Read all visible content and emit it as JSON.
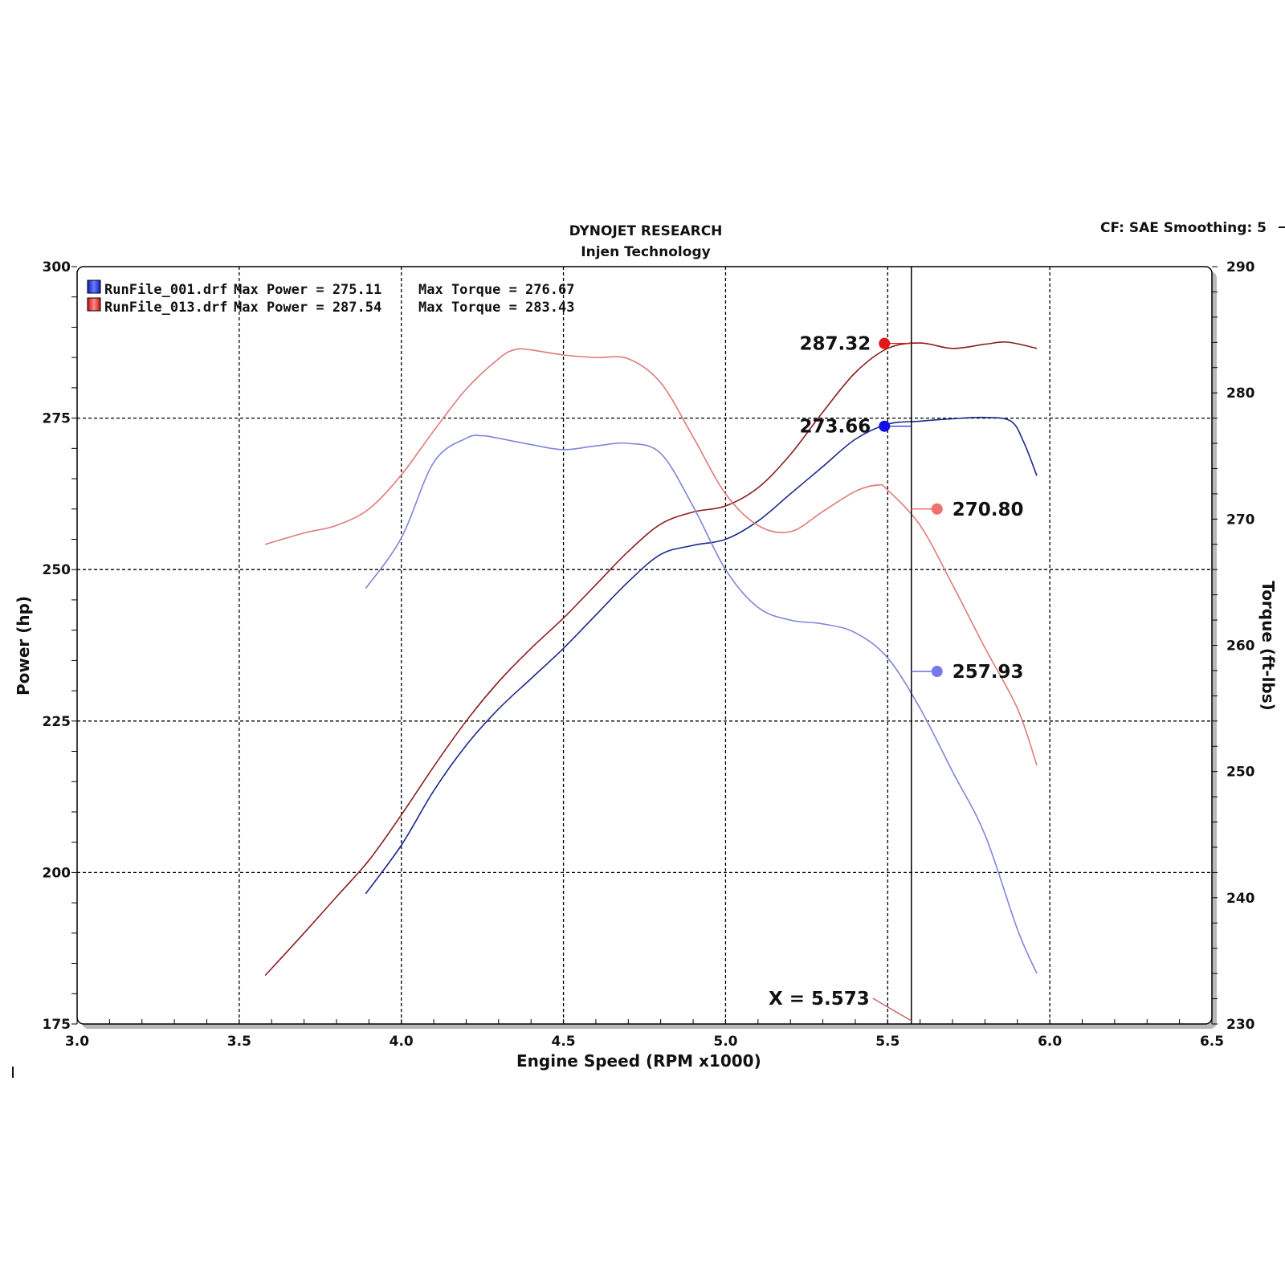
{
  "header": {
    "title": "DYNOJET RESEARCH",
    "subtitle": "Injen Technology",
    "settings": "CF: SAE  Smoothing: 5"
  },
  "cursor": {
    "label": "X = 5.573",
    "x": 5.573
  },
  "chart_data": {
    "type": "line",
    "xlabel": "Engine Speed (RPM x1000)",
    "ylabel": "Power (hp)",
    "y2label": "Torque (ft-lbs)",
    "xlim": [
      3.0,
      6.5
    ],
    "ylim": [
      175,
      300
    ],
    "y2lim": [
      230,
      290
    ],
    "xticks": [
      "3.0",
      "3.5",
      "4.0",
      "4.5",
      "5.0",
      "5.5",
      "6.0",
      "6.5"
    ],
    "yticks": [
      "175",
      "200",
      "225",
      "250",
      "275",
      "300"
    ],
    "y2ticks": [
      "230",
      "240",
      "250",
      "260",
      "270",
      "280",
      "290"
    ],
    "grid": true,
    "legend_position": "top-left",
    "legend": [
      {
        "file": "RunFile_001.drf",
        "power_text": "Max Power = 275.11",
        "torque_text": "Max Torque = 276.67",
        "color": "#1a2fd0"
      },
      {
        "file": "RunFile_013.drf",
        "power_text": "Max Power = 287.54",
        "torque_text": "Max Torque = 283.43",
        "color": "#e02020"
      }
    ],
    "series": [
      {
        "run": "RunFile_001.drf",
        "kind": "power",
        "axis": "left",
        "color": "#1c2a8a",
        "x": [
          3.89,
          4.0,
          4.1,
          4.2,
          4.3,
          4.4,
          4.5,
          4.6,
          4.7,
          4.8,
          4.9,
          5.0,
          5.1,
          5.2,
          5.3,
          5.4,
          5.5,
          5.6,
          5.7,
          5.8,
          5.88,
          5.92,
          5.96
        ],
        "y": [
          196.5,
          204.5,
          213.5,
          221,
          227,
          232,
          237,
          242.5,
          248,
          252.5,
          254,
          255,
          258,
          262.5,
          267,
          271.5,
          274,
          274.5,
          274.9,
          275.1,
          274.5,
          271,
          265.5
        ]
      },
      {
        "run": "RunFile_013.drf",
        "kind": "power",
        "axis": "left",
        "color": "#8b1e1e",
        "x": [
          3.58,
          3.7,
          3.8,
          3.9,
          4.0,
          4.1,
          4.2,
          4.3,
          4.4,
          4.5,
          4.6,
          4.7,
          4.8,
          4.9,
          5.0,
          5.1,
          5.2,
          5.3,
          5.4,
          5.5,
          5.6,
          5.7,
          5.8,
          5.87,
          5.96
        ],
        "y": [
          183,
          190,
          196,
          202,
          209.5,
          217.5,
          225,
          231.5,
          237,
          242,
          247.5,
          253,
          257.5,
          259.5,
          260.5,
          263.5,
          269,
          276,
          282.5,
          286.5,
          287.4,
          286.5,
          287.2,
          287.54,
          286.5
        ]
      },
      {
        "run": "RunFile_001.drf",
        "kind": "torque",
        "axis": "right",
        "color": "#7e86d8",
        "x": [
          3.89,
          4.0,
          4.1,
          4.2,
          4.25,
          4.3,
          4.4,
          4.5,
          4.6,
          4.7,
          4.8,
          4.9,
          5.0,
          5.1,
          5.2,
          5.3,
          5.4,
          5.5,
          5.6,
          5.7,
          5.8,
          5.9,
          5.96
        ],
        "y": [
          264.5,
          268.5,
          274.5,
          276.4,
          276.6,
          276.4,
          275.9,
          275.5,
          275.8,
          276,
          275.2,
          271,
          266,
          263,
          262,
          261.7,
          261,
          259,
          255,
          250,
          245,
          237.5,
          234
        ]
      },
      {
        "run": "RunFile_013.drf",
        "kind": "torque",
        "axis": "right",
        "color": "#e07a7a",
        "x": [
          3.58,
          3.7,
          3.8,
          3.9,
          4.0,
          4.1,
          4.2,
          4.3,
          4.35,
          4.4,
          4.5,
          4.6,
          4.7,
          4.8,
          4.9,
          5.0,
          5.1,
          5.2,
          5.3,
          5.4,
          5.47,
          5.5,
          5.6,
          5.7,
          5.8,
          5.9,
          5.96
        ],
        "y": [
          268,
          268.9,
          269.5,
          270.8,
          273.5,
          277,
          280.3,
          282.7,
          283.43,
          283.4,
          283,
          282.8,
          282.7,
          280.8,
          276.5,
          272,
          269.5,
          269,
          270.6,
          272.2,
          272.7,
          272.3,
          269.5,
          264.8,
          259.8,
          255,
          250.5
        ]
      }
    ],
    "annotations": [
      {
        "label": "287.32",
        "x": 5.49,
        "value": 287.32,
        "axis": "left",
        "color": "#e01818",
        "side": "left"
      },
      {
        "label": "273.66",
        "x": 5.49,
        "value": 273.66,
        "axis": "left",
        "color": "#1010e0",
        "side": "left"
      },
      {
        "label": "270.80",
        "x": 5.573,
        "value": 270.8,
        "axis": "right",
        "color": "#f07070",
        "side": "right"
      },
      {
        "label": "257.93",
        "x": 5.573,
        "value": 257.93,
        "axis": "right",
        "color": "#7878e8",
        "side": "right"
      }
    ]
  }
}
